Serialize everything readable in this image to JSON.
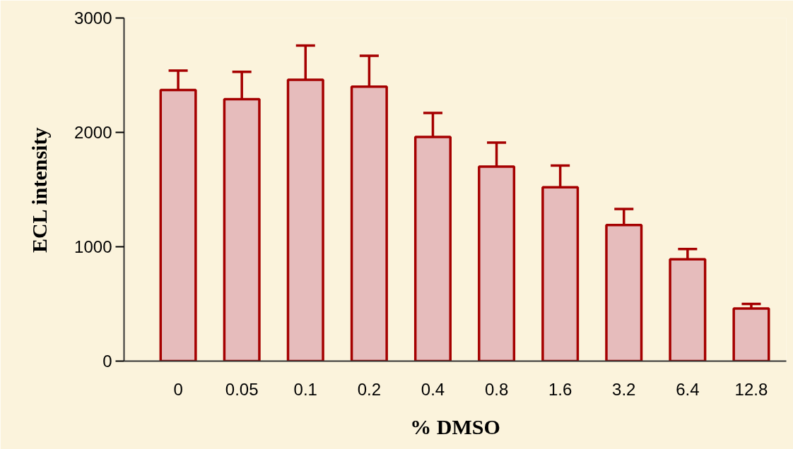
{
  "chart_data": {
    "type": "bar",
    "xlabel": "% DMSO",
    "ylabel": "ECL intensity",
    "categories": [
      "0",
      "0.05",
      "0.1",
      "0.2",
      "0.4",
      "0.8",
      "1.6",
      "3.2",
      "6.4",
      "12.8"
    ],
    "values": [
      2370,
      2290,
      2460,
      2400,
      1960,
      1700,
      1520,
      1190,
      890,
      460
    ],
    "errors": [
      [
        2370,
        2540
      ],
      [
        2290,
        2530
      ],
      [
        2460,
        2760
      ],
      [
        2400,
        2670
      ],
      [
        1960,
        2170
      ],
      [
        1700,
        1910
      ],
      [
        1520,
        1710
      ],
      [
        1190,
        1330
      ],
      [
        890,
        980
      ],
      [
        460,
        500
      ]
    ],
    "color": "#e6bcbc",
    "ylim": [
      0,
      3000
    ],
    "yticks": [
      0,
      1000,
      2000,
      3000
    ],
    "grid": false
  }
}
